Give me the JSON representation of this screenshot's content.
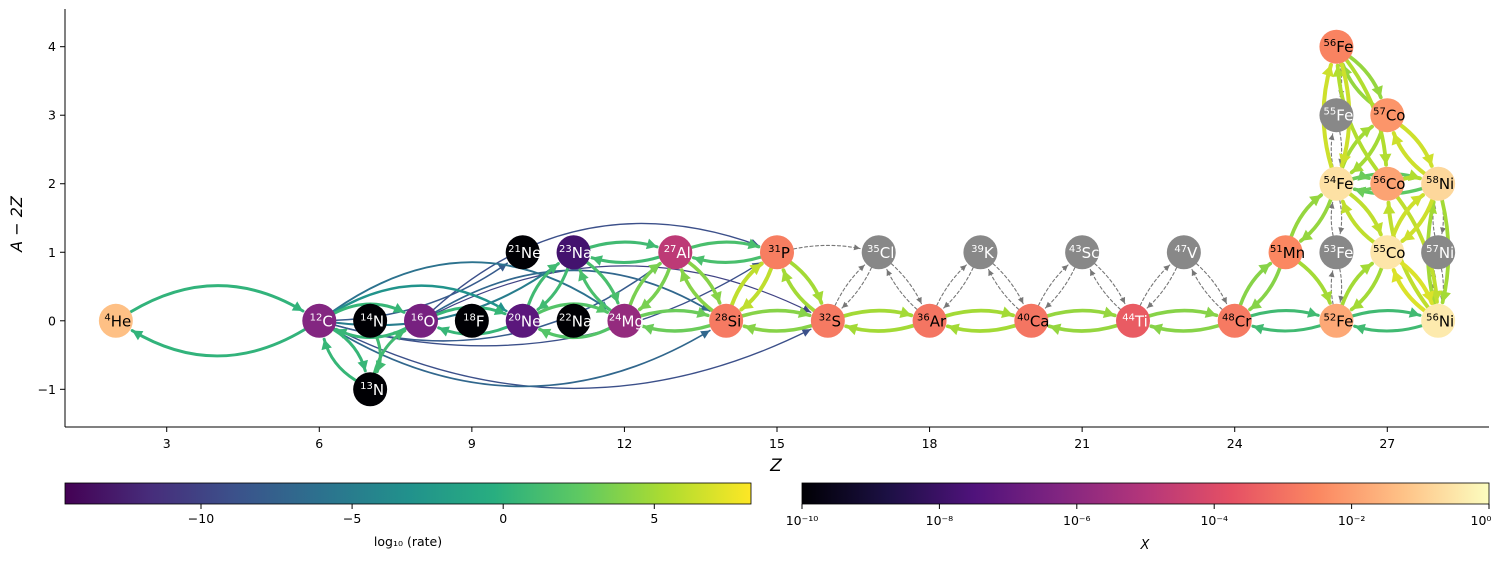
{
  "axes": {
    "xlabel": "Z",
    "ylabel": "A − 2Z",
    "xlim": [
      1.0,
      29.0
    ],
    "ylim": [
      -1.55,
      4.55
    ],
    "xticks": [
      3,
      6,
      9,
      12,
      15,
      18,
      21,
      24,
      27
    ],
    "yticks": [
      -1,
      0,
      1,
      2,
      3,
      4
    ],
    "yticklabels": [
      "−1",
      "0",
      "1",
      "2",
      "3",
      "4"
    ]
  },
  "colorbars": {
    "rate": {
      "label": "log₁₀ (rate)",
      "cmap": "viridis",
      "range": [
        -14.5,
        8.2
      ],
      "ticks": [
        -10,
        -5,
        0,
        5
      ],
      "ticklabels": [
        "−10",
        "−5",
        "0",
        "5"
      ]
    },
    "abundance": {
      "label": "X",
      "cmap": "magma",
      "log_range": [
        -10,
        0
      ],
      "ticks": [
        -10,
        -8,
        -6,
        -4,
        -2,
        0
      ],
      "ticklabels": [
        "10⁻¹⁰",
        "10⁻⁸",
        "10⁻⁶",
        "10⁻⁴",
        "10⁻²",
        "10⁰"
      ]
    }
  },
  "colors": {
    "inactive_node": "#888888",
    "inactive_edge": "#777777",
    "axis": "#000000"
  },
  "chart_data": {
    "type": "network",
    "nodes": [
      {
        "id": "he4",
        "mass": "4",
        "sym": "He",
        "Z": 2,
        "N_minus_Z": 0,
        "logX": -1.3
      },
      {
        "id": "c12",
        "mass": "12",
        "sym": "C",
        "Z": 6,
        "N_minus_Z": 0,
        "logX": -6.2
      },
      {
        "id": "n13",
        "mass": "13",
        "sym": "N",
        "Z": 7,
        "N_minus_Z": -1,
        "logX": -12
      },
      {
        "id": "n14",
        "mass": "14",
        "sym": "N",
        "Z": 7,
        "N_minus_Z": 0,
        "logX": -12
      },
      {
        "id": "o16",
        "mass": "16",
        "sym": "O",
        "Z": 8,
        "N_minus_Z": 0,
        "logX": -6.5
      },
      {
        "id": "f18",
        "mass": "18",
        "sym": "F",
        "Z": 9,
        "N_minus_Z": 0,
        "logX": -12
      },
      {
        "id": "ne20",
        "mass": "20",
        "sym": "Ne",
        "Z": 10,
        "N_minus_Z": 0,
        "logX": -7.2
      },
      {
        "id": "ne21",
        "mass": "21",
        "sym": "Ne",
        "Z": 10,
        "N_minus_Z": 1,
        "logX": -12
      },
      {
        "id": "na22",
        "mass": "22",
        "sym": "Na",
        "Z": 11,
        "N_minus_Z": 0,
        "logX": -12
      },
      {
        "id": "na23",
        "mass": "23",
        "sym": "Na",
        "Z": 11,
        "N_minus_Z": 1,
        "logX": -7.8
      },
      {
        "id": "mg24",
        "mass": "24",
        "sym": "Mg",
        "Z": 12,
        "N_minus_Z": 0,
        "logX": -5.8
      },
      {
        "id": "al27",
        "mass": "27",
        "sym": "Al",
        "Z": 13,
        "N_minus_Z": 1,
        "logX": -4.8
      },
      {
        "id": "si28",
        "mass": "28",
        "sym": "Si",
        "Z": 14,
        "N_minus_Z": 0,
        "logX": -2.8
      },
      {
        "id": "p31",
        "mass": "31",
        "sym": "P",
        "Z": 15,
        "N_minus_Z": 1,
        "logX": -2.7
      },
      {
        "id": "s32",
        "mass": "32",
        "sym": "S",
        "Z": 16,
        "N_minus_Z": 0,
        "logX": -2.8
      },
      {
        "id": "cl35",
        "mass": "35",
        "sym": "Cl",
        "Z": 17,
        "N_minus_Z": 1,
        "logX": null
      },
      {
        "id": "ar36",
        "mass": "36",
        "sym": "Ar",
        "Z": 18,
        "N_minus_Z": 0,
        "logX": -2.9
      },
      {
        "id": "k39",
        "mass": "39",
        "sym": "K",
        "Z": 19,
        "N_minus_Z": 1,
        "logX": null
      },
      {
        "id": "ca40",
        "mass": "40",
        "sym": "Ca",
        "Z": 20,
        "N_minus_Z": 0,
        "logX": -2.9
      },
      {
        "id": "sc43",
        "mass": "43",
        "sym": "Sc",
        "Z": 21,
        "N_minus_Z": 1,
        "logX": null
      },
      {
        "id": "ti44",
        "mass": "44",
        "sym": "Ti",
        "Z": 22,
        "N_minus_Z": 0,
        "logX": -3.5
      },
      {
        "id": "v47",
        "mass": "47",
        "sym": "V",
        "Z": 23,
        "N_minus_Z": 1,
        "logX": null
      },
      {
        "id": "cr48",
        "mass": "48",
        "sym": "Cr",
        "Z": 24,
        "N_minus_Z": 0,
        "logX": -2.8
      },
      {
        "id": "mn51",
        "mass": "51",
        "sym": "Mn",
        "Z": 25,
        "N_minus_Z": 1,
        "logX": -2.5
      },
      {
        "id": "fe52",
        "mass": "52",
        "sym": "Fe",
        "Z": 26,
        "N_minus_Z": 0,
        "logX": -1.8
      },
      {
        "id": "fe53",
        "mass": "53",
        "sym": "Fe",
        "Z": 26,
        "N_minus_Z": 1,
        "logX": null
      },
      {
        "id": "fe54",
        "mass": "54",
        "sym": "Fe",
        "Z": 26,
        "N_minus_Z": 2,
        "logX": -0.6
      },
      {
        "id": "fe55",
        "mass": "55",
        "sym": "Fe",
        "Z": 26,
        "N_minus_Z": 3,
        "logX": null
      },
      {
        "id": "fe56",
        "mass": "56",
        "sym": "Fe",
        "Z": 26,
        "N_minus_Z": 4,
        "logX": -2.6
      },
      {
        "id": "co55",
        "mass": "55",
        "sym": "Co",
        "Z": 27,
        "N_minus_Z": 1,
        "logX": -0.5
      },
      {
        "id": "co56",
        "mass": "56",
        "sym": "Co",
        "Z": 27,
        "N_minus_Z": 2,
        "logX": -1.9
      },
      {
        "id": "co57",
        "mass": "57",
        "sym": "Co",
        "Z": 27,
        "N_minus_Z": 3,
        "logX": -2.2
      },
      {
        "id": "ni56",
        "mass": "56",
        "sym": "Ni",
        "Z": 28,
        "N_minus_Z": 0,
        "logX": -0.4
      },
      {
        "id": "ni57",
        "mass": "57",
        "sym": "Ni",
        "Z": 28,
        "N_minus_Z": 1,
        "logX": null
      },
      {
        "id": "ni58",
        "mass": "58",
        "sym": "Ni",
        "Z": 28,
        "N_minus_Z": 2,
        "logX": -0.8
      }
    ],
    "edges": [
      {
        "from": "he4",
        "to": "c12",
        "rate": 0.2,
        "rad": 0.3
      },
      {
        "from": "c12",
        "to": "he4",
        "rate": 0.2,
        "rad": 0.3
      },
      {
        "from": "c12",
        "to": "n13",
        "rate": 0.5,
        "rad": 0.2
      },
      {
        "from": "n13",
        "to": "c12",
        "rate": 0.5,
        "rad": 0.2
      },
      {
        "from": "n13",
        "to": "o16",
        "rate": 1.0,
        "rad": 0.2
      },
      {
        "from": "n14",
        "to": "n13",
        "rate": 1.0,
        "rad": 0.2
      },
      {
        "from": "c12",
        "to": "o16",
        "rate": 0.5,
        "rad": 0.25
      },
      {
        "from": "o16",
        "to": "c12",
        "rate": 0.5,
        "rad": 0.25
      },
      {
        "from": "c12",
        "to": "ne20",
        "rate": -3,
        "rad": 0.3
      },
      {
        "from": "c12",
        "to": "mg24",
        "rate": -6,
        "rad": 0.35
      },
      {
        "from": "c12",
        "to": "si28",
        "rate": -7,
        "rad": -0.3
      },
      {
        "from": "c12",
        "to": "s32",
        "rate": -9,
        "rad": -0.25
      },
      {
        "from": "c12",
        "to": "ne21",
        "rate": -8,
        "rad": -0.15
      },
      {
        "from": "c12",
        "to": "na23",
        "rate": -5,
        "rad": -0.2
      },
      {
        "from": "c12",
        "to": "al27",
        "rate": -8,
        "rad": -0.25
      },
      {
        "from": "c12",
        "to": "p31",
        "rate": -9,
        "rad": -0.22
      },
      {
        "from": "o16",
        "to": "si28",
        "rate": -7,
        "rad": 0.3
      },
      {
        "from": "o16",
        "to": "s32",
        "rate": -10,
        "rad": 0.25
      },
      {
        "from": "o16",
        "to": "p31",
        "rate": -9,
        "rad": 0.3
      },
      {
        "from": "o16",
        "to": "ne20",
        "rate": 0.5,
        "rad": 0.2
      },
      {
        "from": "ne20",
        "to": "o16",
        "rate": 0.5,
        "rad": 0.2
      },
      {
        "from": "ne20",
        "to": "mg24",
        "rate": 2.0,
        "rad": 0.25
      },
      {
        "from": "mg24",
        "to": "ne20",
        "rate": 2.0,
        "rad": 0.25
      },
      {
        "from": "ne20",
        "to": "na23",
        "rate": 1.0,
        "rad": 0.15
      },
      {
        "from": "na23",
        "to": "ne20",
        "rate": 1.0,
        "rad": 0.15
      },
      {
        "from": "na23",
        "to": "mg24",
        "rate": 1.5,
        "rad": 0.15
      },
      {
        "from": "mg24",
        "to": "na23",
        "rate": 1.5,
        "rad": 0.15
      },
      {
        "from": "mg24",
        "to": "al27",
        "rate": 3.5,
        "rad": 0.15
      },
      {
        "from": "al27",
        "to": "mg24",
        "rate": 3.5,
        "rad": 0.15
      },
      {
        "from": "mg24",
        "to": "si28",
        "rate": 3.0,
        "rad": 0.15
      },
      {
        "from": "si28",
        "to": "mg24",
        "rate": 3.0,
        "rad": 0.15
      },
      {
        "from": "al27",
        "to": "si28",
        "rate": 4.0,
        "rad": 0.15
      },
      {
        "from": "si28",
        "to": "al27",
        "rate": 4.0,
        "rad": 0.15
      },
      {
        "from": "al27",
        "to": "p31",
        "rate": 1.5,
        "rad": 0.15
      },
      {
        "from": "p31",
        "to": "al27",
        "rate": 1.5,
        "rad": 0.15
      },
      {
        "from": "na23",
        "to": "al27",
        "rate": 1.0,
        "rad": 0.15
      },
      {
        "from": "al27",
        "to": "na23",
        "rate": 1.0,
        "rad": 0.15
      },
      {
        "from": "si28",
        "to": "p31",
        "rate": 6.0,
        "rad": 0.15
      },
      {
        "from": "p31",
        "to": "si28",
        "rate": 6.0,
        "rad": 0.15
      },
      {
        "from": "p31",
        "to": "s32",
        "rate": 5.0,
        "rad": 0.15
      },
      {
        "from": "s32",
        "to": "p31",
        "rate": 5.0,
        "rad": 0.15
      },
      {
        "from": "si28",
        "to": "s32",
        "rate": 4.0,
        "rad": 0.15
      },
      {
        "from": "s32",
        "to": "si28",
        "rate": 4.0,
        "rad": 0.15
      },
      {
        "from": "s32",
        "to": "ar36",
        "rate": 5.0,
        "rad": 0.15
      },
      {
        "from": "ar36",
        "to": "s32",
        "rate": 5.0,
        "rad": 0.15
      },
      {
        "from": "ar36",
        "to": "ca40",
        "rate": 5.0,
        "rad": 0.15
      },
      {
        "from": "ca40",
        "to": "ar36",
        "rate": 5.0,
        "rad": 0.15
      },
      {
        "from": "ca40",
        "to": "ti44",
        "rate": 4.5,
        "rad": 0.15
      },
      {
        "from": "ti44",
        "to": "ca40",
        "rate": 4.5,
        "rad": 0.15
      },
      {
        "from": "ti44",
        "to": "cr48",
        "rate": 4.0,
        "rad": 0.15
      },
      {
        "from": "cr48",
        "to": "ti44",
        "rate": 4.0,
        "rad": 0.15
      },
      {
        "from": "cr48",
        "to": "fe52",
        "rate": 1.0,
        "rad": 0.15
      },
      {
        "from": "fe52",
        "to": "cr48",
        "rate": 1.0,
        "rad": 0.15
      },
      {
        "from": "fe52",
        "to": "ni56",
        "rate": 1.0,
        "rad": 0.15
      },
      {
        "from": "ni56",
        "to": "fe52",
        "rate": 1.0,
        "rad": 0.15
      },
      {
        "from": "cr48",
        "to": "mn51",
        "rate": 4.0,
        "rad": 0.15
      },
      {
        "from": "mn51",
        "to": "cr48",
        "rate": 4.0,
        "rad": 0.15
      },
      {
        "from": "mn51",
        "to": "fe54",
        "rate": 4.5,
        "rad": 0.15
      },
      {
        "from": "fe54",
        "to": "mn51",
        "rate": 4.5,
        "rad": 0.15
      },
      {
        "from": "mn51",
        "to": "fe52",
        "rate": 5.0,
        "rad": 0.15
      },
      {
        "from": "fe52",
        "to": "co55",
        "rate": 5.0,
        "rad": 0.15
      },
      {
        "from": "co55",
        "to": "fe52",
        "rate": 5.0,
        "rad": 0.15
      },
      {
        "from": "fe54",
        "to": "co55",
        "rate": 6.0,
        "rad": 0.15
      },
      {
        "from": "co55",
        "to": "fe54",
        "rate": 6.0,
        "rad": 0.15
      },
      {
        "from": "co55",
        "to": "ni56",
        "rate": 7.0,
        "rad": 0.15
      },
      {
        "from": "ni56",
        "to": "co55",
        "rate": 7.0,
        "rad": 0.15
      },
      {
        "from": "fe54",
        "to": "ni58",
        "rate": 2.5,
        "rad": 0.15
      },
      {
        "from": "ni58",
        "to": "fe54",
        "rate": 2.5,
        "rad": 0.15
      },
      {
        "from": "fe54",
        "to": "co57",
        "rate": 5.0,
        "rad": 0.15
      },
      {
        "from": "co57",
        "to": "fe54",
        "rate": 5.0,
        "rad": 0.15
      },
      {
        "from": "co55",
        "to": "ni58",
        "rate": 6.5,
        "rad": 0.15
      },
      {
        "from": "ni58",
        "to": "co55",
        "rate": 6.5,
        "rad": 0.15
      },
      {
        "from": "co56",
        "to": "ni56",
        "rate": 6.0,
        "rad": 0.15
      },
      {
        "from": "ni56",
        "to": "co56",
        "rate": 6.0,
        "rad": 0.15
      },
      {
        "from": "fe56",
        "to": "co57",
        "rate": 4.5,
        "rad": 0.15
      },
      {
        "from": "co57",
        "to": "fe56",
        "rate": 4.5,
        "rad": 0.15
      },
      {
        "from": "fe56",
        "to": "co56",
        "rate": 5.5,
        "rad": 0.15
      },
      {
        "from": "co56",
        "to": "fe56",
        "rate": 5.5,
        "rad": 0.15
      },
      {
        "from": "fe54",
        "to": "fe56",
        "rate": 6.5,
        "rad": 0.15
      },
      {
        "from": "fe56",
        "to": "fe54",
        "rate": 6.5,
        "rad": 0.15
      },
      {
        "from": "co57",
        "to": "ni58",
        "rate": 6.5,
        "rad": 0.15
      },
      {
        "from": "ni58",
        "to": "co57",
        "rate": 6.5,
        "rad": 0.15
      },
      {
        "from": "co56",
        "to": "ni58",
        "rate": 5.5,
        "rad": 0.15
      },
      {
        "from": "fe54",
        "to": "co56",
        "rate": 3.0,
        "rad": 0.15
      },
      {
        "from": "co56",
        "to": "fe54",
        "rate": 3.0,
        "rad": 0.15
      },
      {
        "from": "ni56",
        "to": "ni58",
        "rate": 5.0,
        "rad": 0.12
      },
      {
        "from": "ni58",
        "to": "ni56",
        "rate": 5.0,
        "rad": 0.12
      },
      {
        "from": "p31",
        "to": "cl35",
        "rate": null,
        "rad": 0.1
      },
      {
        "from": "cl35",
        "to": "s32",
        "rate": null,
        "rad": 0.1
      },
      {
        "from": "s32",
        "to": "cl35",
        "rate": null,
        "rad": 0.1
      },
      {
        "from": "cl35",
        "to": "ar36",
        "rate": null,
        "rad": 0.1
      },
      {
        "from": "ar36",
        "to": "cl35",
        "rate": null,
        "rad": 0.1
      },
      {
        "from": "ar36",
        "to": "k39",
        "rate": null,
        "rad": 0.1
      },
      {
        "from": "k39",
        "to": "ar36",
        "rate": null,
        "rad": 0.1
      },
      {
        "from": "k39",
        "to": "ca40",
        "rate": null,
        "rad": 0.1
      },
      {
        "from": "ca40",
        "to": "k39",
        "rate": null,
        "rad": 0.1
      },
      {
        "from": "ca40",
        "to": "sc43",
        "rate": null,
        "rad": 0.1
      },
      {
        "from": "sc43",
        "to": "ca40",
        "rate": null,
        "rad": 0.1
      },
      {
        "from": "sc43",
        "to": "ti44",
        "rate": null,
        "rad": 0.1
      },
      {
        "from": "ti44",
        "to": "sc43",
        "rate": null,
        "rad": 0.1
      },
      {
        "from": "ti44",
        "to": "v47",
        "rate": null,
        "rad": 0.1
      },
      {
        "from": "v47",
        "to": "ti44",
        "rate": null,
        "rad": 0.1
      },
      {
        "from": "v47",
        "to": "cr48",
        "rate": null,
        "rad": 0.1
      },
      {
        "from": "cr48",
        "to": "v47",
        "rate": null,
        "rad": 0.1
      },
      {
        "from": "fe56",
        "to": "fe55",
        "rate": null,
        "rad": 0.1
      },
      {
        "from": "fe55",
        "to": "fe54",
        "rate": null,
        "rad": 0.1
      },
      {
        "from": "fe54",
        "to": "fe55",
        "rate": null,
        "rad": 0.1
      },
      {
        "from": "fe54",
        "to": "fe53",
        "rate": null,
        "rad": 0.1
      },
      {
        "from": "fe53",
        "to": "fe54",
        "rate": null,
        "rad": 0.1
      },
      {
        "from": "fe53",
        "to": "fe52",
        "rate": null,
        "rad": 0.1
      },
      {
        "from": "fe52",
        "to": "fe53",
        "rate": null,
        "rad": 0.1
      },
      {
        "from": "ni58",
        "to": "ni57",
        "rate": null,
        "rad": 0.1
      },
      {
        "from": "ni57",
        "to": "ni58",
        "rate": null,
        "rad": 0.1
      },
      {
        "from": "ni57",
        "to": "ni56",
        "rate": null,
        "rad": 0.1
      },
      {
        "from": "ni56",
        "to": "ni57",
        "rate": null,
        "rad": 0.1
      }
    ]
  }
}
